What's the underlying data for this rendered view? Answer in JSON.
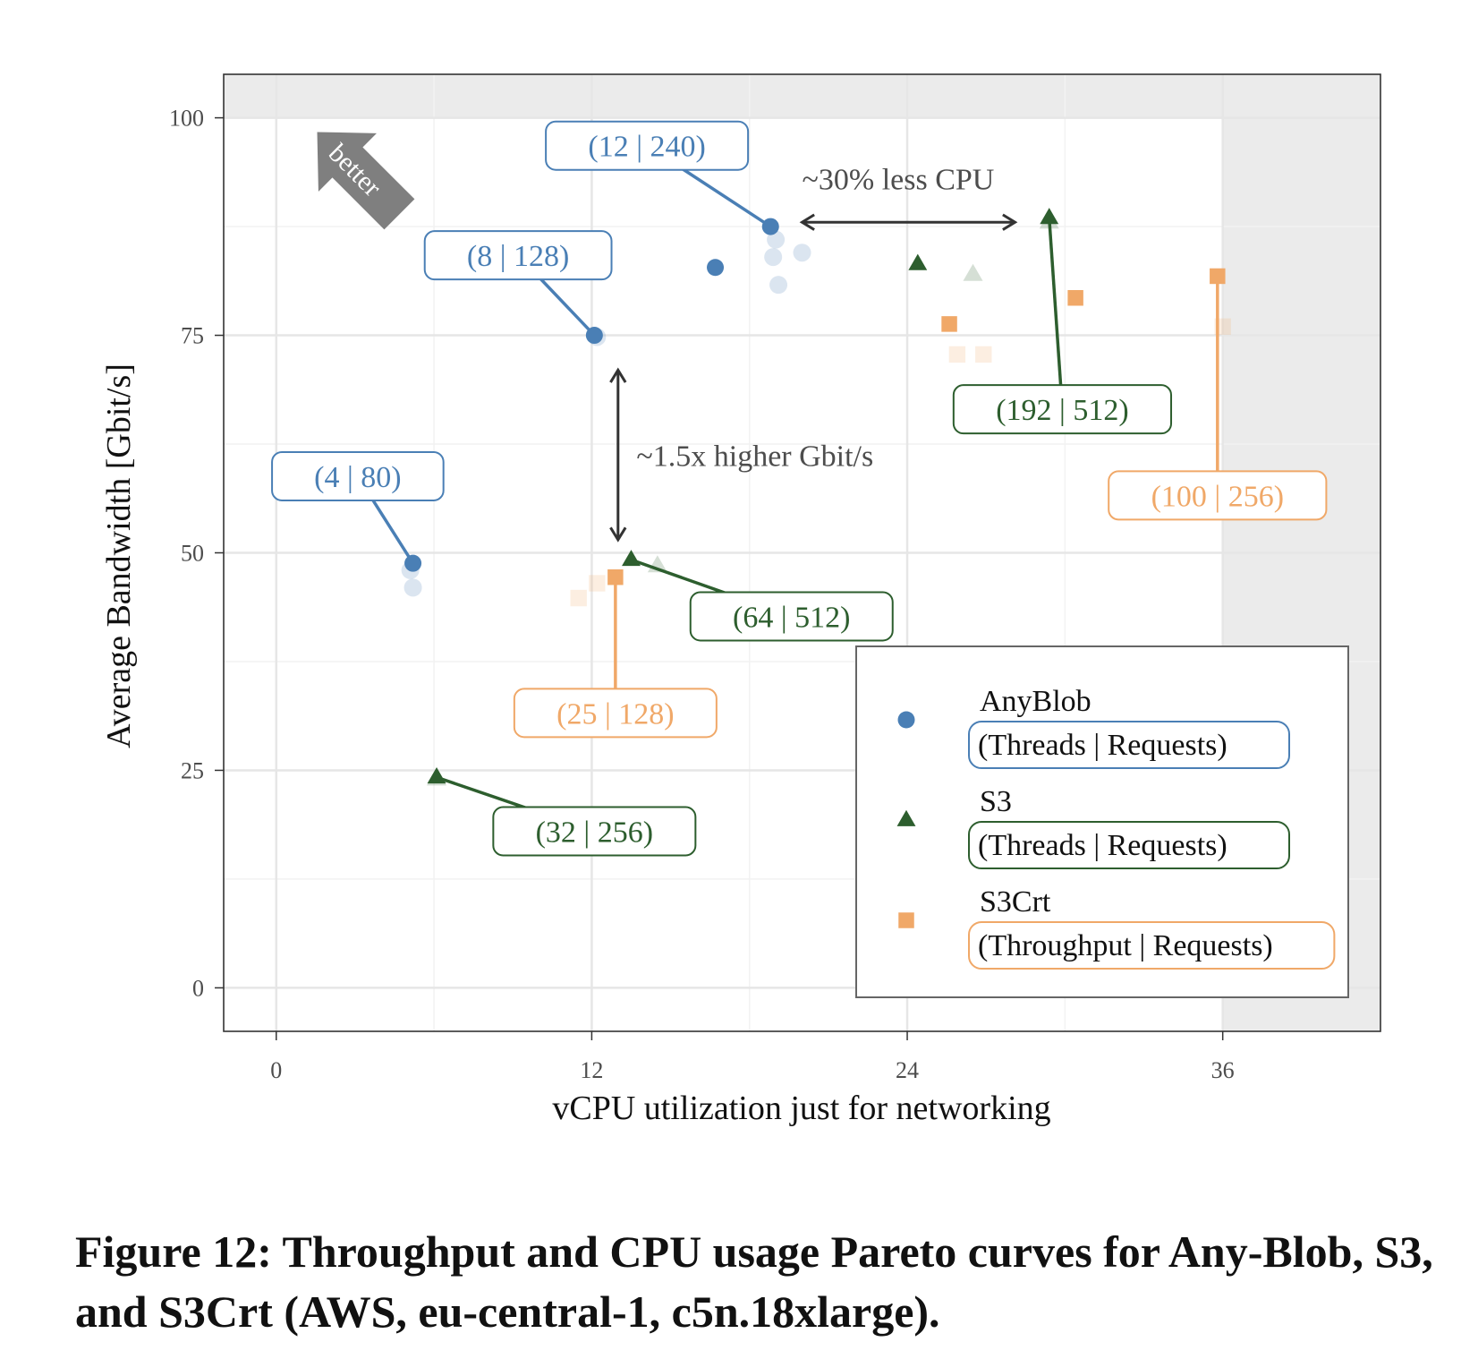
{
  "chart_data": {
    "type": "scatter",
    "xlabel": "vCPU utilization just for networking",
    "ylabel": "Average Bandwidth [Gbit/s]",
    "xlim": [
      -2,
      42
    ],
    "ylim": [
      -5,
      105
    ],
    "x_ticks": [
      0,
      12,
      24,
      36
    ],
    "y_ticks": [
      0,
      25,
      50,
      75,
      100
    ],
    "grid": true,
    "shaded_regions": [
      {
        "x": [
          36,
          42
        ],
        "y": [
          -5,
          105
        ]
      },
      {
        "x": [
          -2,
          42
        ],
        "y": [
          100,
          105
        ]
      }
    ],
    "colors": {
      "AnyBlob": "#4a7fb5",
      "S3": "#2d5e2e",
      "S3Crt": "#f0a868"
    },
    "series": [
      {
        "name": "AnyBlob",
        "marker": "circle",
        "points": [
          [
            5.2,
            48.8
          ],
          [
            12.1,
            75.0
          ],
          [
            16.7,
            82.8
          ],
          [
            18.8,
            87.5
          ]
        ],
        "faded_points": [
          [
            5.1,
            48.0
          ],
          [
            5.2,
            46.0
          ],
          [
            12.2,
            74.8
          ],
          [
            19.0,
            86.0
          ],
          [
            18.9,
            84.0
          ],
          [
            20.0,
            84.5
          ],
          [
            19.1,
            80.8
          ]
        ]
      },
      {
        "name": "S3",
        "marker": "triangle",
        "points": [
          [
            6.1,
            24.2
          ],
          [
            13.5,
            49.2
          ],
          [
            24.4,
            83.2
          ],
          [
            29.4,
            88.5
          ]
        ],
        "faded_points": [
          [
            6.1,
            24.0
          ],
          [
            14.5,
            48.5
          ],
          [
            26.5,
            82.0
          ],
          [
            29.4,
            88.0
          ]
        ]
      },
      {
        "name": "S3Crt",
        "marker": "square",
        "points": [
          [
            12.9,
            47.2
          ],
          [
            25.6,
            76.3
          ],
          [
            30.4,
            79.3
          ],
          [
            35.8,
            81.8
          ]
        ],
        "faded_points": [
          [
            11.5,
            44.8
          ],
          [
            12.2,
            46.5
          ],
          [
            25.9,
            72.8
          ],
          [
            26.9,
            72.8
          ],
          [
            36.0,
            76.0
          ]
        ]
      }
    ],
    "point_labels": [
      {
        "series": "AnyBlob",
        "text": "(4 | 80)",
        "x": 5.2,
        "y": 48.8,
        "label_x": 3.1,
        "label_y": 58.8
      },
      {
        "series": "AnyBlob",
        "text": "(8 | 128)",
        "x": 12.1,
        "y": 75.0,
        "label_x": 9.2,
        "label_y": 84.2
      },
      {
        "series": "AnyBlob",
        "text": "(12 | 240)",
        "x": 18.8,
        "y": 87.5,
        "label_x": 14.1,
        "label_y": 96.8
      },
      {
        "series": "S3",
        "text": "(32 | 256)",
        "x": 6.1,
        "y": 24.2,
        "label_x": 12.1,
        "label_y": 18.0
      },
      {
        "series": "S3",
        "text": "(64 | 512)",
        "x": 13.5,
        "y": 49.2,
        "label_x": 19.6,
        "label_y": 42.7
      },
      {
        "series": "S3",
        "text": "(192 | 512)",
        "x": 29.4,
        "y": 88.5,
        "label_x": 29.9,
        "label_y": 66.5
      },
      {
        "series": "S3Crt",
        "text": "(25 | 128)",
        "x": 12.9,
        "y": 47.2,
        "label_x": 12.9,
        "label_y": 31.6
      },
      {
        "series": "S3Crt",
        "text": "(100 | 256)",
        "x": 35.8,
        "y": 81.8,
        "label_x": 35.8,
        "label_y": 56.6
      }
    ],
    "annotations": [
      {
        "text": "~30% less CPU",
        "arrow_from": [
          20.0,
          88.0
        ],
        "arrow_to": [
          28.1,
          88.0
        ],
        "text_x": 20.0,
        "text_y": 93.0
      },
      {
        "text": "~1.5x higher Gbit/s",
        "arrow_from": [
          13.0,
          51.5
        ],
        "arrow_to": [
          13.0,
          71.0
        ],
        "text_x": 13.7,
        "text_y": 61.2
      },
      {
        "text": "better",
        "arrow_at": [
          3.0,
          94.0
        ]
      }
    ],
    "legend": {
      "placement": "bottom-right",
      "entries": [
        {
          "series": "AnyBlob",
          "title": "AnyBlob",
          "subtitle": "(Threads | Requests)"
        },
        {
          "series": "S3",
          "title": "S3",
          "subtitle": "(Threads | Requests)"
        },
        {
          "series": "S3Crt",
          "title": "S3Crt",
          "subtitle": "(Throughput | Requests)"
        }
      ]
    }
  },
  "caption": "Figure 12: Throughput and CPU usage Pareto curves for Any-Blob, S3, and S3Crt (AWS, eu-central-1, c5n.18xlarge)."
}
